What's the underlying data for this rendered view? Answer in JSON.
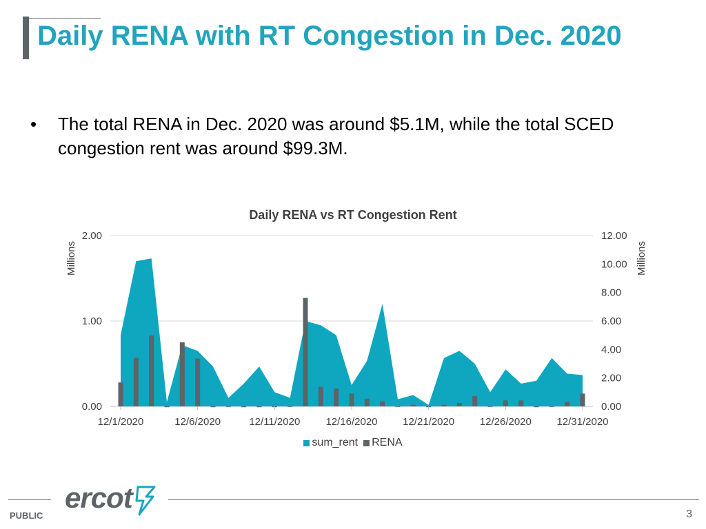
{
  "slide": {
    "title": "Daily RENA with RT Congestion in Dec. 2020",
    "bullet": "The total RENA in Dec. 2020 was around $5.1M, while the total SCED congestion rent was around $99.3M.",
    "footer": {
      "classification": "PUBLIC",
      "page_number": "3",
      "logo": "ercot"
    }
  },
  "colors": {
    "title": "#22a4bd",
    "sum_rent": "#0fa6bf",
    "rena": "#5d6468",
    "grid": "#d9d9d9"
  },
  "chart_data": {
    "type": "area+bar",
    "title": "Daily RENA vs RT Congestion Rent",
    "x": [
      "12/1/2020",
      "12/2/2020",
      "12/3/2020",
      "12/4/2020",
      "12/5/2020",
      "12/6/2020",
      "12/7/2020",
      "12/8/2020",
      "12/9/2020",
      "12/10/2020",
      "12/11/2020",
      "12/12/2020",
      "12/13/2020",
      "12/14/2020",
      "12/15/2020",
      "12/16/2020",
      "12/17/2020",
      "12/18/2020",
      "12/19/2020",
      "12/20/2020",
      "12/21/2020",
      "12/22/2020",
      "12/23/2020",
      "12/24/2020",
      "12/25/2020",
      "12/26/2020",
      "12/27/2020",
      "12/28/2020",
      "12/29/2020",
      "12/30/2020",
      "12/31/2020"
    ],
    "xticks": [
      "12/1/2020",
      "12/6/2020",
      "12/11/2020",
      "12/16/2020",
      "12/21/2020",
      "12/26/2020",
      "12/31/2020"
    ],
    "y_left": {
      "label": "Millions",
      "ylim": [
        0,
        2
      ],
      "ticks": [
        "0.00",
        "1.00",
        "2.00"
      ]
    },
    "y_right": {
      "label": "Millions",
      "ylim": [
        0,
        12
      ],
      "ticks": [
        "0.00",
        "2.00",
        "4.00",
        "6.00",
        "8.00",
        "10.00",
        "12.00"
      ]
    },
    "grid": true,
    "legend_position": "bottom",
    "series": [
      {
        "name": "sum_rent",
        "type": "area",
        "axis": "right",
        "values": [
          5.0,
          10.2,
          10.4,
          0.3,
          4.3,
          3.9,
          2.8,
          0.6,
          1.6,
          2.8,
          1.0,
          0.6,
          6.0,
          5.7,
          5.0,
          1.5,
          3.2,
          7.2,
          0.5,
          0.8,
          0.1,
          3.4,
          3.9,
          3.0,
          1.0,
          2.6,
          1.6,
          1.8,
          3.4,
          2.3,
          2.2
        ]
      },
      {
        "name": "RENA",
        "type": "bar",
        "axis": "left",
        "values": [
          0.28,
          0.57,
          0.83,
          -0.01,
          0.75,
          0.56,
          -0.01,
          0.0,
          -0.01,
          -0.01,
          -0.01,
          0.0,
          1.27,
          0.23,
          0.21,
          0.15,
          0.09,
          0.06,
          0.0,
          0.02,
          -0.01,
          0.02,
          0.04,
          0.12,
          0.0,
          0.07,
          0.07,
          -0.01,
          0.0,
          0.05,
          0.15
        ]
      }
    ]
  }
}
